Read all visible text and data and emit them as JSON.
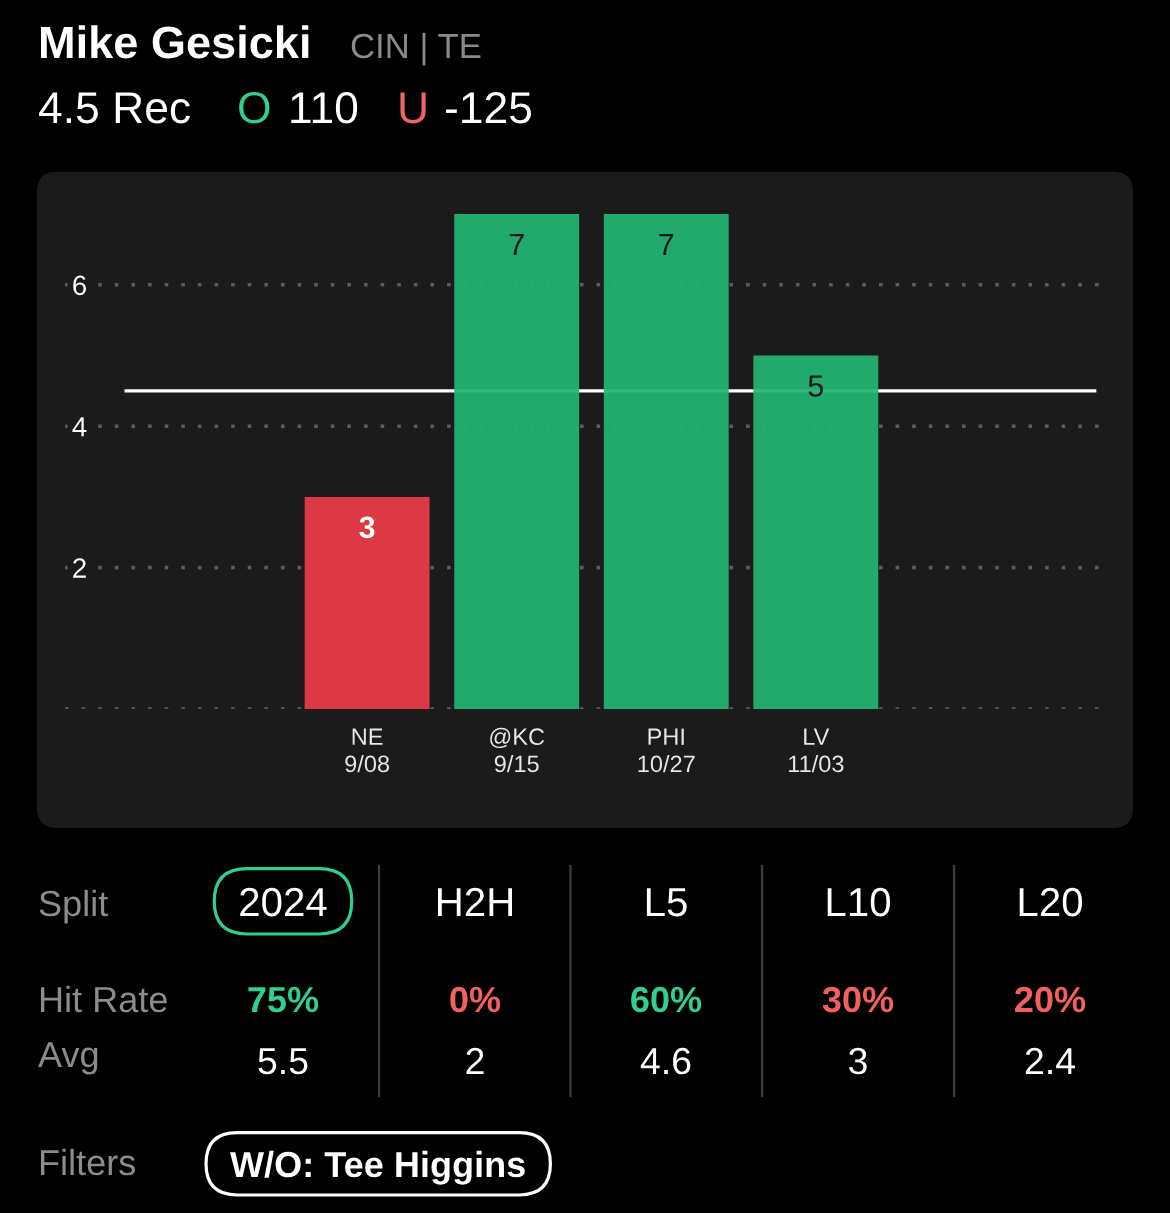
{
  "chart_data": {
    "type": "bar",
    "title": "Mike Gesicki",
    "subtitle": "CIN | TE",
    "categories": [
      "NE\n9/08",
      "@KC\n9/15",
      "PHI\n10/27",
      "LV\n11/03"
    ],
    "values": [
      3,
      7,
      7,
      5
    ],
    "colors": [
      "#ec3a48",
      "#22b573",
      "#22b573",
      "#22b573"
    ],
    "ylim": [
      0,
      7.6
    ],
    "yticks": [
      {
        "value": 0,
        "label": null
      },
      2,
      4,
      6
    ],
    "grid": "y",
    "data_labels": true,
    "ref_lines": [
      {
        "axis": "y",
        "value": 4.5,
        "color": "#ffffff"
      }
    ],
    "annotations": [
      "4.5 Rec",
      "O",
      "110",
      "U",
      "-125",
      "Split",
      "2024",
      "H2H",
      "L5",
      "L10",
      "L20",
      "Hit Rate",
      "75%",
      "0%",
      "60%",
      "30%",
      "20%",
      "Avg",
      "5.5",
      "2",
      "4.6",
      "3",
      "2.4",
      "Filters",
      "W/O: Tee Higgins"
    ]
  }
}
